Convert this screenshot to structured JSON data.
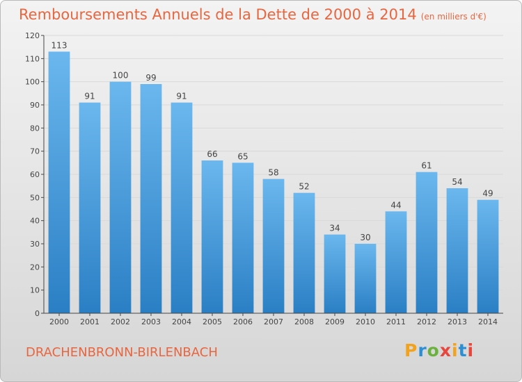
{
  "header": {
    "title": "Remboursements Annuels de la Dette de 2000 à 2014",
    "subtitle": "(en milliers d'€)"
  },
  "footer": {
    "commune": "DRACHENBRONN-BIRLENBACH",
    "logo_text": "Proxiti",
    "logo_colors": [
      "#f3a21c",
      "#2c8fd6",
      "#6ab23d",
      "#e8453c",
      "#f3a21c",
      "#2c8fd6",
      "#e8453c"
    ]
  },
  "colors": {
    "accent": "#e8663f",
    "bar_light": "#6bb7ee",
    "bar_dark": "#2a7fc4",
    "grid": "#d9d9d9",
    "axis": "#444444"
  },
  "chart_data": {
    "type": "bar",
    "categories": [
      "2000",
      "2001",
      "2002",
      "2003",
      "2004",
      "2005",
      "2006",
      "2007",
      "2008",
      "2009",
      "2010",
      "2011",
      "2012",
      "2013",
      "2014"
    ],
    "values": [
      113,
      91,
      100,
      99,
      91,
      66,
      65,
      58,
      52,
      34,
      30,
      44,
      61,
      54,
      49
    ],
    "title": "Remboursements Annuels de la Dette de 2000 à 2014",
    "xlabel": "",
    "ylabel": "",
    "ylim": [
      0,
      120
    ],
    "yticks": [
      0,
      10,
      20,
      30,
      40,
      50,
      60,
      70,
      80,
      90,
      100,
      110,
      120
    ],
    "grid": true,
    "data_labels": true
  }
}
